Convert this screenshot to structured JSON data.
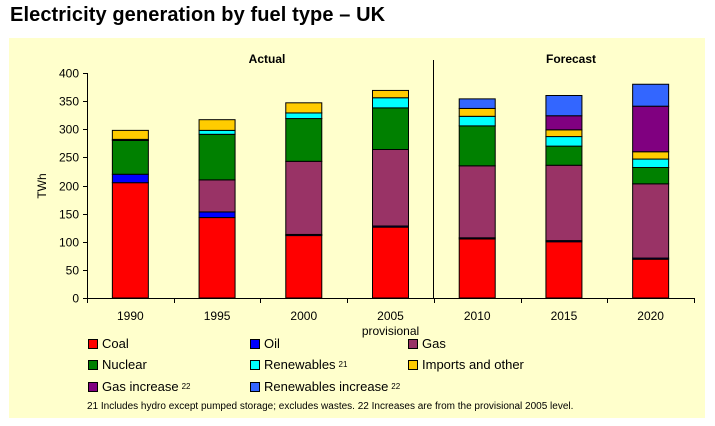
{
  "title": "Electricity generation by fuel type – UK",
  "chart_data": {
    "type": "bar",
    "stacked": true,
    "title": "Electricity generation by fuel type – UK",
    "ylabel": "TWh",
    "xlabel": "",
    "ylim": [
      0,
      400
    ],
    "yticks": [
      "0",
      "50",
      "100",
      "150",
      "200",
      "250",
      "300",
      "350",
      "400"
    ],
    "ytick_values": [
      0,
      50,
      100,
      150,
      200,
      250,
      300,
      350,
      400
    ],
    "categories": [
      "1990",
      "1995",
      "2000",
      "2005",
      "2010",
      "2015",
      "2020"
    ],
    "category_sublabels": [
      "",
      "",
      "",
      "provisional",
      "",
      "",
      ""
    ],
    "sections": [
      {
        "label": "Actual",
        "categories": [
          "1990",
          "1995",
          "2000",
          "2005"
        ]
      },
      {
        "label": "Forecast",
        "categories": [
          "2010",
          "2015",
          "2020"
        ]
      }
    ],
    "series": [
      {
        "name": "Coal",
        "color": "#ff0000",
        "values": [
          205,
          143,
          111,
          126,
          105,
          100,
          69
        ]
      },
      {
        "name": "Oil",
        "color": "#0000ff",
        "values": [
          15,
          10,
          2,
          2,
          2,
          2,
          2
        ]
      },
      {
        "name": "Gas",
        "color": "#993366",
        "values": [
          0,
          57,
          130,
          136,
          128,
          134,
          132
        ]
      },
      {
        "name": "Nuclear",
        "color": "#008000",
        "values": [
          60,
          81,
          76,
          74,
          71,
          34,
          29
        ]
      },
      {
        "name": "Renewables",
        "sup": "21",
        "color": "#00ffff",
        "values": [
          2,
          7,
          10,
          18,
          17,
          17,
          15
        ]
      },
      {
        "name": "Imports and other",
        "color": "#ffcc00",
        "values": [
          16,
          19,
          18,
          13,
          14,
          12,
          13
        ]
      },
      {
        "name": "Gas increase",
        "sup": "22",
        "color": "#800080",
        "values": [
          0,
          0,
          0,
          0,
          0,
          25,
          81
        ]
      },
      {
        "name": "Renewables increase",
        "sup": "22",
        "color": "#3366ff",
        "values": [
          0,
          0,
          0,
          0,
          17,
          36,
          39
        ]
      }
    ],
    "legend_position": "bottom",
    "grid": false,
    "footnote": "21 Includes hydro except pumped storage; excludes wastes.  22 Increases are from the provisional 2005 level."
  }
}
